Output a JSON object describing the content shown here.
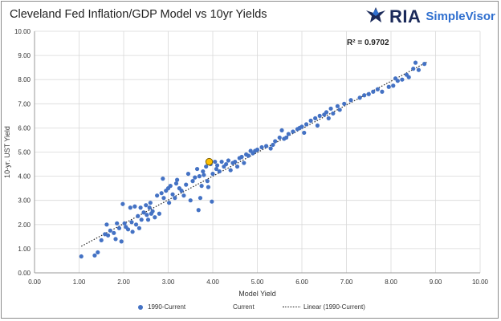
{
  "header": {
    "title": "Cleveland Fed Inflation/GDP Model vs 10yr Yields",
    "logo_text": "RIA",
    "logo_subtext": "SimpleVisor",
    "logo_icon": "eagle-icon"
  },
  "legend": {
    "items": [
      "1990-Current",
      "Current",
      "Linear (1990-Current)"
    ]
  },
  "colors": {
    "series": "#4472c4",
    "current_fill": "#ffc000",
    "current_stroke": "#7f6000",
    "trend": "#222222",
    "grid": "#d9d9d9"
  },
  "chart_data": {
    "type": "scatter",
    "title": "Cleveland Fed Inflation/GDP Model vs 10yr Yields",
    "xlabel": "Model Yield",
    "ylabel": "10-yr. UST Yield",
    "xlim": [
      0,
      10
    ],
    "ylim": [
      0,
      10
    ],
    "x_ticks": [
      "0.00",
      "1.00",
      "2.00",
      "3.00",
      "4.00",
      "5.00",
      "6.00",
      "7.00",
      "8.00",
      "9.00",
      "10.00"
    ],
    "y_ticks": [
      "0.00",
      "1.00",
      "2.00",
      "3.00",
      "4.00",
      "5.00",
      "6.00",
      "7.00",
      "8.00",
      "9.00",
      "10.00"
    ],
    "grid": true,
    "legend_position": "bottom",
    "annotation": "R² = 0.9702",
    "series": [
      {
        "name": "1990-Current",
        "points": [
          [
            1.05,
            0.68
          ],
          [
            1.35,
            0.72
          ],
          [
            1.42,
            0.85
          ],
          [
            1.5,
            1.35
          ],
          [
            1.58,
            1.6
          ],
          [
            1.62,
            2.0
          ],
          [
            1.65,
            1.55
          ],
          [
            1.7,
            1.75
          ],
          [
            1.78,
            1.65
          ],
          [
            1.82,
            1.4
          ],
          [
            1.85,
            2.05
          ],
          [
            1.9,
            1.85
          ],
          [
            1.95,
            1.3
          ],
          [
            1.98,
            2.85
          ],
          [
            2.02,
            2.05
          ],
          [
            2.05,
            1.9
          ],
          [
            2.1,
            1.8
          ],
          [
            2.15,
            2.7
          ],
          [
            2.18,
            2.1
          ],
          [
            2.2,
            1.7
          ],
          [
            2.25,
            2.75
          ],
          [
            2.28,
            2.0
          ],
          [
            2.32,
            2.35
          ],
          [
            2.35,
            1.85
          ],
          [
            2.38,
            2.7
          ],
          [
            2.4,
            2.2
          ],
          [
            2.45,
            2.5
          ],
          [
            2.5,
            2.8
          ],
          [
            2.52,
            2.4
          ],
          [
            2.55,
            2.2
          ],
          [
            2.58,
            2.7
          ],
          [
            2.6,
            2.9
          ],
          [
            2.62,
            2.45
          ],
          [
            2.65,
            2.55
          ],
          [
            2.7,
            2.3
          ],
          [
            2.75,
            3.2
          ],
          [
            2.8,
            2.45
          ],
          [
            2.85,
            3.3
          ],
          [
            2.88,
            3.9
          ],
          [
            2.9,
            3.1
          ],
          [
            2.95,
            3.4
          ],
          [
            3.0,
            3.5
          ],
          [
            3.02,
            2.9
          ],
          [
            3.05,
            3.6
          ],
          [
            3.1,
            3.25
          ],
          [
            3.15,
            3.1
          ],
          [
            3.18,
            3.7
          ],
          [
            3.2,
            3.85
          ],
          [
            3.25,
            3.5
          ],
          [
            3.3,
            3.4
          ],
          [
            3.35,
            3.2
          ],
          [
            3.4,
            3.65
          ],
          [
            3.45,
            4.1
          ],
          [
            3.5,
            3.0
          ],
          [
            3.55,
            3.8
          ],
          [
            3.6,
            3.95
          ],
          [
            3.65,
            4.3
          ],
          [
            3.68,
            2.6
          ],
          [
            3.7,
            4.0
          ],
          [
            3.72,
            3.1
          ],
          [
            3.75,
            3.6
          ],
          [
            3.78,
            4.2
          ],
          [
            3.8,
            4.05
          ],
          [
            3.85,
            4.4
          ],
          [
            3.88,
            3.8
          ],
          [
            3.9,
            3.55
          ],
          [
            3.95,
            4.5
          ],
          [
            3.98,
            2.95
          ],
          [
            4.0,
            4.1
          ],
          [
            4.05,
            4.6
          ],
          [
            4.08,
            4.3
          ],
          [
            4.1,
            4.45
          ],
          [
            4.15,
            4.2
          ],
          [
            4.2,
            4.6
          ],
          [
            4.25,
            4.4
          ],
          [
            4.3,
            4.5
          ],
          [
            4.35,
            4.65
          ],
          [
            4.4,
            4.25
          ],
          [
            4.45,
            4.55
          ],
          [
            4.5,
            4.6
          ],
          [
            4.55,
            4.4
          ],
          [
            4.6,
            4.75
          ],
          [
            4.65,
            4.8
          ],
          [
            4.7,
            4.55
          ],
          [
            4.75,
            4.9
          ],
          [
            4.8,
            4.85
          ],
          [
            4.85,
            5.05
          ],
          [
            4.9,
            4.95
          ],
          [
            5.0,
            5.1
          ],
          [
            5.1,
            5.2
          ],
          [
            5.2,
            5.25
          ],
          [
            5.3,
            5.15
          ],
          [
            5.4,
            5.45
          ],
          [
            5.5,
            5.6
          ],
          [
            5.55,
            5.9
          ],
          [
            5.6,
            5.55
          ],
          [
            5.7,
            5.75
          ],
          [
            5.8,
            5.85
          ],
          [
            5.9,
            5.95
          ],
          [
            6.0,
            6.05
          ],
          [
            6.1,
            6.15
          ],
          [
            6.2,
            6.3
          ],
          [
            6.3,
            6.4
          ],
          [
            6.35,
            6.1
          ],
          [
            6.4,
            6.5
          ],
          [
            6.5,
            6.55
          ],
          [
            6.55,
            6.65
          ],
          [
            6.6,
            6.4
          ],
          [
            6.65,
            6.8
          ],
          [
            6.7,
            6.6
          ],
          [
            6.8,
            6.9
          ],
          [
            7.1,
            7.15
          ],
          [
            7.3,
            7.25
          ],
          [
            7.4,
            7.35
          ],
          [
            7.5,
            7.4
          ],
          [
            7.6,
            7.5
          ],
          [
            7.7,
            7.6
          ],
          [
            7.8,
            7.5
          ],
          [
            8.05,
            7.75
          ],
          [
            8.15,
            7.95
          ],
          [
            8.25,
            8.0
          ],
          [
            8.35,
            8.2
          ],
          [
            8.4,
            8.1
          ],
          [
            8.5,
            8.45
          ],
          [
            8.55,
            8.7
          ],
          [
            8.62,
            8.4
          ],
          [
            8.75,
            8.65
          ],
          [
            8.1,
            8.05
          ],
          [
            7.95,
            7.7
          ],
          [
            6.95,
            7.0
          ],
          [
            6.85,
            6.75
          ],
          [
            6.05,
            5.8
          ],
          [
            5.95,
            6.0
          ],
          [
            5.65,
            5.6
          ],
          [
            5.35,
            5.3
          ],
          [
            4.95,
            5.05
          ]
        ]
      },
      {
        "name": "Current",
        "points": [
          [
            3.92,
            4.6
          ]
        ]
      }
    ],
    "trendline": {
      "name": "Linear (1990-Current)",
      "x": [
        1.05,
        8.8
      ],
      "y": [
        1.1,
        8.72
      ]
    }
  }
}
